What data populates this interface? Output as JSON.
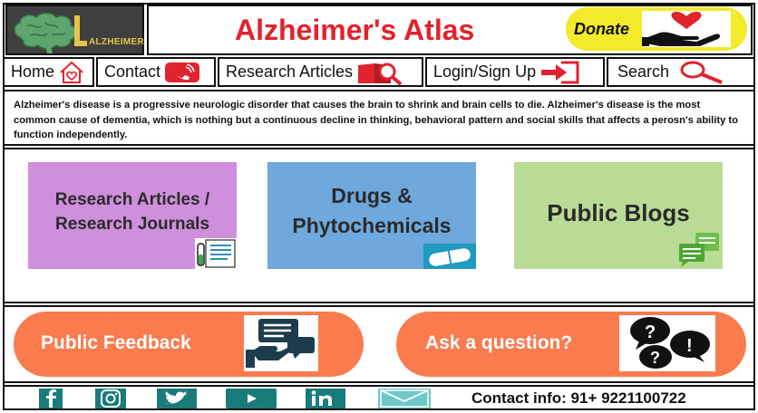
{
  "logo": {
    "text": "ALZHEIMER",
    "icon": "brain-logo-icon"
  },
  "header": {
    "title": "Alzheimer's Atlas",
    "donate_label": "Donate",
    "donate_icon": "heart-hand-icon"
  },
  "nav": {
    "items": [
      {
        "label": "Home",
        "icon": "home-heart-icon"
      },
      {
        "label": "Contact",
        "icon": "phone-icon"
      },
      {
        "label": "Research Articles",
        "icon": "book-magnifier-icon"
      },
      {
        "label": "Login/Sign Up",
        "icon": "login-arrow-icon"
      },
      {
        "label": "Search",
        "icon": "search-icon"
      }
    ]
  },
  "description": "Alzheimer's disease is a progressive neurologic disorder that causes the brain to shrink and brain cells to die. Alzheimer's disease is the most common cause of dementia, which is nothing but a continuous decline in thinking, behavioral pattern and social skills that affects a perosn's ability to function independently.",
  "cards": [
    {
      "label": "Research Articles / Research Journals",
      "icon": "clipboard-test-tube-icon",
      "color": "#cf8fdd"
    },
    {
      "label": "Drugs & Phytochemicals",
      "icon": "pill-icon",
      "color": "#6fa8dc"
    },
    {
      "label": "Public Blogs",
      "icon": "chat-bubbles-icon",
      "color": "#b9db95"
    }
  ],
  "actions": [
    {
      "label": "Public Feedback",
      "icon": "feedback-hand-icon",
      "color": "#f97b4e"
    },
    {
      "label": "Ask a question?",
      "icon": "question-bubbles-icon",
      "color": "#f97b4e"
    }
  ],
  "footer": {
    "social": [
      "facebook-icon",
      "instagram-icon",
      "twitter-icon",
      "youtube-icon",
      "linkedin-icon",
      "mail-icon"
    ],
    "contact": "Contact info: 91+ 9221100722"
  },
  "colors": {
    "title": "#e0232e",
    "donate_bg": "#f2ea2b",
    "action_bg": "#f97b4e",
    "social": "#1a7b7b"
  }
}
